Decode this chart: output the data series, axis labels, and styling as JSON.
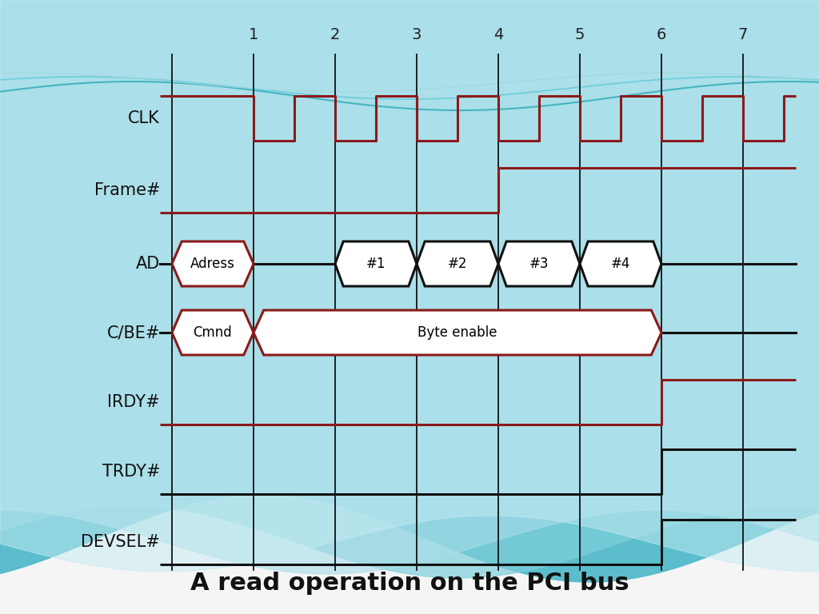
{
  "title": "A read operation on the PCI bus",
  "signals": [
    "CLK",
    "Frame#",
    "AD",
    "C/BE#",
    "IRDY#",
    "TRDY#",
    "DEVSEL#"
  ],
  "red_color": "#8B1A1A",
  "black_color": "#111111",
  "bg_color": "#F5F5F5",
  "cycle_labels": [
    "1",
    "2",
    "3",
    "4",
    "5",
    "6",
    "7"
  ],
  "title_fontsize": 22,
  "label_fontsize": 15,
  "tick_fontsize": 14,
  "lw": 2.2
}
